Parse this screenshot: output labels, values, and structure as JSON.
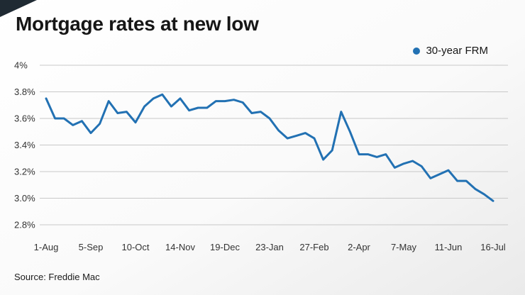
{
  "header": {
    "title": "Mortgage rates at new low"
  },
  "legend": {
    "label": "30-year FRM"
  },
  "footer": {
    "source": "Source: Freddie Mac"
  },
  "colors": {
    "line": "#2271b3",
    "grid": "#c8c8c8",
    "text": "#333333",
    "accent_corner": "#1f2a33"
  },
  "chart_data": {
    "type": "line",
    "title": "Mortgage rates at new low",
    "xlabel": "",
    "ylabel": "",
    "unit": "%",
    "grid": true,
    "legend_position": "top-right",
    "ylim": [
      2.8,
      4.0
    ],
    "y_tick_values": [
      4.0,
      3.8,
      3.6,
      3.4,
      3.2,
      3.0,
      2.8
    ],
    "y_tick_labels": [
      "4%",
      "3.8%",
      "3.6%",
      "3.4%",
      "3.2%",
      "3.0%",
      "2.8%"
    ],
    "x": [
      "1-Aug",
      "8-Aug",
      "15-Aug",
      "22-Aug",
      "29-Aug",
      "5-Sep",
      "12-Sep",
      "19-Sep",
      "26-Sep",
      "3-Oct",
      "10-Oct",
      "17-Oct",
      "24-Oct",
      "31-Oct",
      "7-Nov",
      "14-Nov",
      "21-Nov",
      "27-Nov",
      "5-Dec",
      "12-Dec",
      "19-Dec",
      "26-Dec",
      "2-Jan",
      "9-Jan",
      "16-Jan",
      "23-Jan",
      "30-Jan",
      "6-Feb",
      "13-Feb",
      "20-Feb",
      "27-Feb",
      "5-Mar",
      "12-Mar",
      "19-Mar",
      "26-Mar",
      "2-Apr",
      "9-Apr",
      "16-Apr",
      "23-Apr",
      "30-Apr",
      "7-May",
      "14-May",
      "21-May",
      "28-May",
      "4-Jun",
      "11-Jun",
      "18-Jun",
      "25-Jun",
      "2-Jul",
      "9-Jul",
      "16-Jul"
    ],
    "x_tick_indices": [
      0,
      5,
      10,
      15,
      20,
      25,
      30,
      35,
      40,
      45,
      50
    ],
    "x_tick_labels": [
      "1-Aug",
      "5-Sep",
      "10-Oct",
      "14-Nov",
      "19-Dec",
      "23-Jan",
      "27-Feb",
      "2-Apr",
      "7-May",
      "11-Jun",
      "16-Jul"
    ],
    "series": [
      {
        "name": "30-year FRM",
        "values": [
          3.75,
          3.6,
          3.6,
          3.55,
          3.58,
          3.49,
          3.56,
          3.73,
          3.64,
          3.65,
          3.57,
          3.69,
          3.75,
          3.78,
          3.69,
          3.75,
          3.66,
          3.68,
          3.68,
          3.73,
          3.73,
          3.74,
          3.72,
          3.64,
          3.65,
          3.6,
          3.51,
          3.45,
          3.47,
          3.49,
          3.45,
          3.29,
          3.36,
          3.65,
          3.5,
          3.33,
          3.33,
          3.31,
          3.33,
          3.23,
          3.26,
          3.28,
          3.24,
          3.15,
          3.18,
          3.21,
          3.13,
          3.13,
          3.07,
          3.03,
          2.98
        ]
      }
    ]
  }
}
